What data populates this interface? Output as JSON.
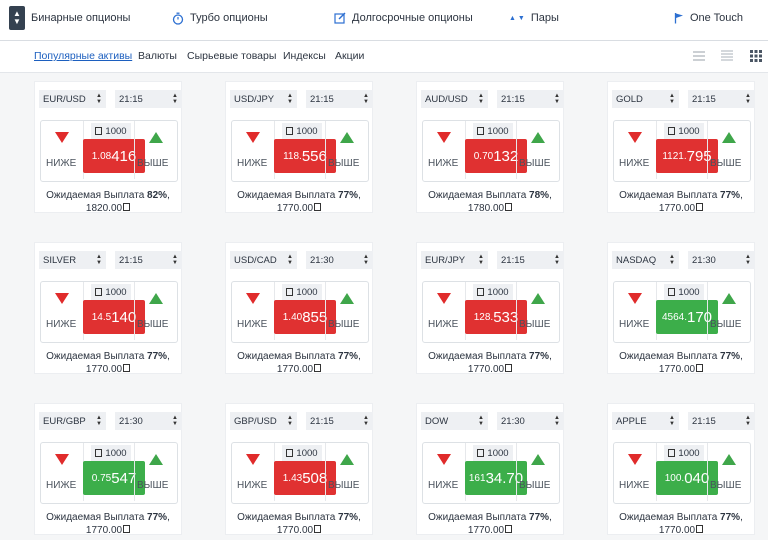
{
  "top_tabs": [
    {
      "label": "Бинарные опционы",
      "icon": "binary-options-icon"
    },
    {
      "label": "Турбо опционы",
      "icon": "stopwatch-icon"
    },
    {
      "label": "Долгосрочные опционы",
      "icon": "edit-icon"
    },
    {
      "label": "Пары",
      "icon": "pairs-arrows-icon"
    },
    {
      "label": "One Touch",
      "icon": "flag-icon"
    }
  ],
  "sub_nav": [
    {
      "label": "Популярные активы",
      "active": true
    },
    {
      "label": "Валюты",
      "active": false
    },
    {
      "label": "Сырьевые товары",
      "active": false
    },
    {
      "label": "Индексы",
      "active": false
    },
    {
      "label": "Акции",
      "active": false
    }
  ],
  "view_buttons": [
    "list-view-icon",
    "compact-view-icon",
    "grid-view-icon"
  ],
  "labels": {
    "down": "НИЖЕ",
    "up": "ВЫШЕ",
    "payout": "Ожидаемая Выплата"
  },
  "colors": {
    "down": "#e03131",
    "up": "#3cae4a",
    "active_link": "#1c5fbf"
  },
  "cards": [
    {
      "asset": "EUR/USD",
      "time": "21:15",
      "amount": "1000",
      "price_small": "1.08",
      "price_big": "416",
      "trend": "down",
      "payout_pct": "82%",
      "payout_amount": "1820.00"
    },
    {
      "asset": "USD/JPY",
      "time": "21:15",
      "amount": "1000",
      "price_small": "118.",
      "price_big": "556",
      "trend": "down",
      "payout_pct": "77%",
      "payout_amount": "1770.00"
    },
    {
      "asset": "AUD/USD",
      "time": "21:15",
      "amount": "1000",
      "price_small": "0.70",
      "price_big": "132",
      "trend": "down",
      "payout_pct": "78%",
      "payout_amount": "1780.00"
    },
    {
      "asset": "GOLD",
      "time": "21:15",
      "amount": "1000",
      "price_small": "1121.",
      "price_big": "795",
      "trend": "down",
      "payout_pct": "77%",
      "payout_amount": "1770.00"
    },
    {
      "asset": "SILVER",
      "time": "21:15",
      "amount": "1000",
      "price_small": "14.5",
      "price_big": "140",
      "trend": "down",
      "payout_pct": "77%",
      "payout_amount": "1770.00"
    },
    {
      "asset": "USD/CAD",
      "time": "21:30",
      "amount": "1000",
      "price_small": "1.40",
      "price_big": "855",
      "trend": "down",
      "payout_pct": "77%",
      "payout_amount": "1770.00"
    },
    {
      "asset": "EUR/JPY",
      "time": "21:15",
      "amount": "1000",
      "price_small": "128.",
      "price_big": "533",
      "trend": "down",
      "payout_pct": "77%",
      "payout_amount": "1770.00"
    },
    {
      "asset": "NASDAQ",
      "time": "21:30",
      "amount": "1000",
      "price_small": "4564.",
      "price_big": "170",
      "trend": "up",
      "payout_pct": "77%",
      "payout_amount": "1770.00"
    },
    {
      "asset": "EUR/GBP",
      "time": "21:30",
      "amount": "1000",
      "price_small": "0.75",
      "price_big": "547",
      "trend": "up",
      "payout_pct": "77%",
      "payout_amount": "1770.00"
    },
    {
      "asset": "GBP/USD",
      "time": "21:15",
      "amount": "1000",
      "price_small": "1.43",
      "price_big": "508",
      "trend": "down",
      "payout_pct": "77%",
      "payout_amount": "1770.00"
    },
    {
      "asset": "DOW",
      "time": "21:30",
      "amount": "1000",
      "price_small": "161",
      "price_big": "34.70",
      "trend": "up",
      "payout_pct": "77%",
      "payout_amount": "1770.00"
    },
    {
      "asset": "APPLE",
      "time": "21:15",
      "amount": "1000",
      "price_small": "100.",
      "price_big": "040",
      "trend": "up",
      "payout_pct": "77%",
      "payout_amount": "1770.00"
    }
  ]
}
